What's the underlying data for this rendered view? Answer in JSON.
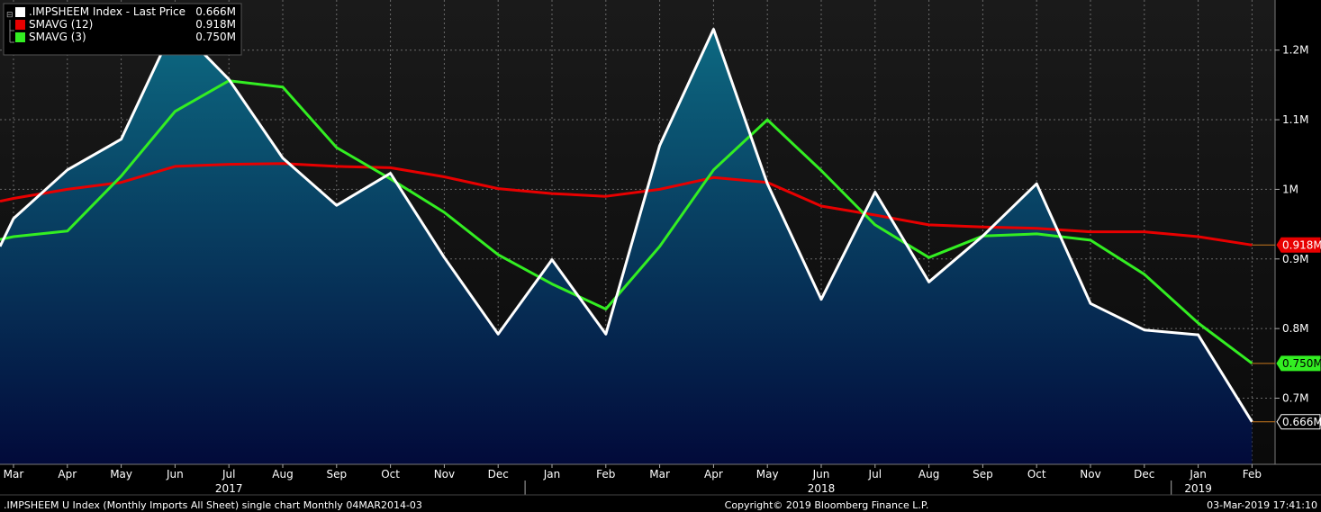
{
  "colors": {
    "background": "#000000",
    "plot_bg_top": "#151515",
    "area_top": "#0d6a82",
    "area_bottom": "#020a3a",
    "price": "#ffffff",
    "sma12": "#e80000",
    "sma3": "#33ee22",
    "grid": "#6a6a6a"
  },
  "legend": {
    "entries": [
      {
        "label": ".IMPSHEEM Index - Last Price",
        "value": "0.666M",
        "color": "#ffffff"
      },
      {
        "label": "SMAVG (12)",
        "value": "0.918M",
        "color": "#e80000"
      },
      {
        "label": "SMAVG (3)",
        "value": "0.750M",
        "color": "#33ee22"
      }
    ]
  },
  "footer": {
    "left": ".IMPSHEEM U Index (Monthly Imports All Sheet) single chart  Monthly 04MAR2014-03",
    "center": "Copyright© 2019 Bloomberg Finance L.P.",
    "right": "03-Mar-2019 17:41:10"
  },
  "chart_data": {
    "type": "line",
    "x": [
      "Mar",
      "Apr",
      "May",
      "Jun",
      "Jul",
      "Aug",
      "Sep",
      "Oct",
      "Nov",
      "Dec",
      "Jan",
      "Feb",
      "Mar",
      "Apr",
      "May",
      "Jun",
      "Jul",
      "Aug",
      "Sep",
      "Oct",
      "Nov",
      "Dec",
      "Jan",
      "Feb"
    ],
    "year_labels": [
      {
        "label": "2017",
        "at_index": 4
      },
      {
        "label": "2018",
        "at_index": 15
      },
      {
        "label": "2019",
        "at_index": 22
      }
    ],
    "year_dividers_after_index": [
      9,
      21
    ],
    "yticks": [
      0.7,
      0.8,
      0.9,
      1.0,
      1.1,
      1.2
    ],
    "ytick_labels": [
      "0.7M",
      "0.8M",
      "0.9M",
      "1M",
      "1.1M",
      "1.2M"
    ],
    "ylim": [
      0.605,
      1.272
    ],
    "series": [
      {
        "name": ".IMPSHEEM Index - Last Price",
        "style": "area",
        "values": [
          0.958,
          1.028,
          1.072,
          1.237,
          1.158,
          1.045,
          0.977,
          1.023,
          0.902,
          0.792,
          0.899,
          0.792,
          1.063,
          1.23,
          1.008,
          0.842,
          0.996,
          0.867,
          0.933,
          1.008,
          0.836,
          0.798,
          0.791,
          0.666
        ],
        "start_value": 0.918,
        "tag": "0.666M"
      },
      {
        "name": "SMAVG (12)",
        "style": "line",
        "values": [
          0.987,
          1.0,
          1.01,
          1.033,
          1.036,
          1.037,
          1.033,
          1.031,
          1.018,
          1.001,
          0.994,
          0.99,
          1.0,
          1.017,
          1.01,
          0.976,
          0.963,
          0.949,
          0.946,
          0.944,
          0.939,
          0.939,
          0.932,
          0.92
        ],
        "start_value": 0.983,
        "tag": "0.918M"
      },
      {
        "name": "SMAVG (3)",
        "style": "line",
        "values": [
          0.932,
          0.94,
          1.019,
          1.112,
          1.156,
          1.147,
          1.06,
          1.015,
          0.967,
          0.906,
          0.864,
          0.828,
          0.918,
          1.028,
          1.1,
          1.027,
          0.949,
          0.902,
          0.933,
          0.936,
          0.927,
          0.878,
          0.808,
          0.75
        ],
        "start_value": 0.928,
        "tag": "0.750M"
      }
    ]
  }
}
